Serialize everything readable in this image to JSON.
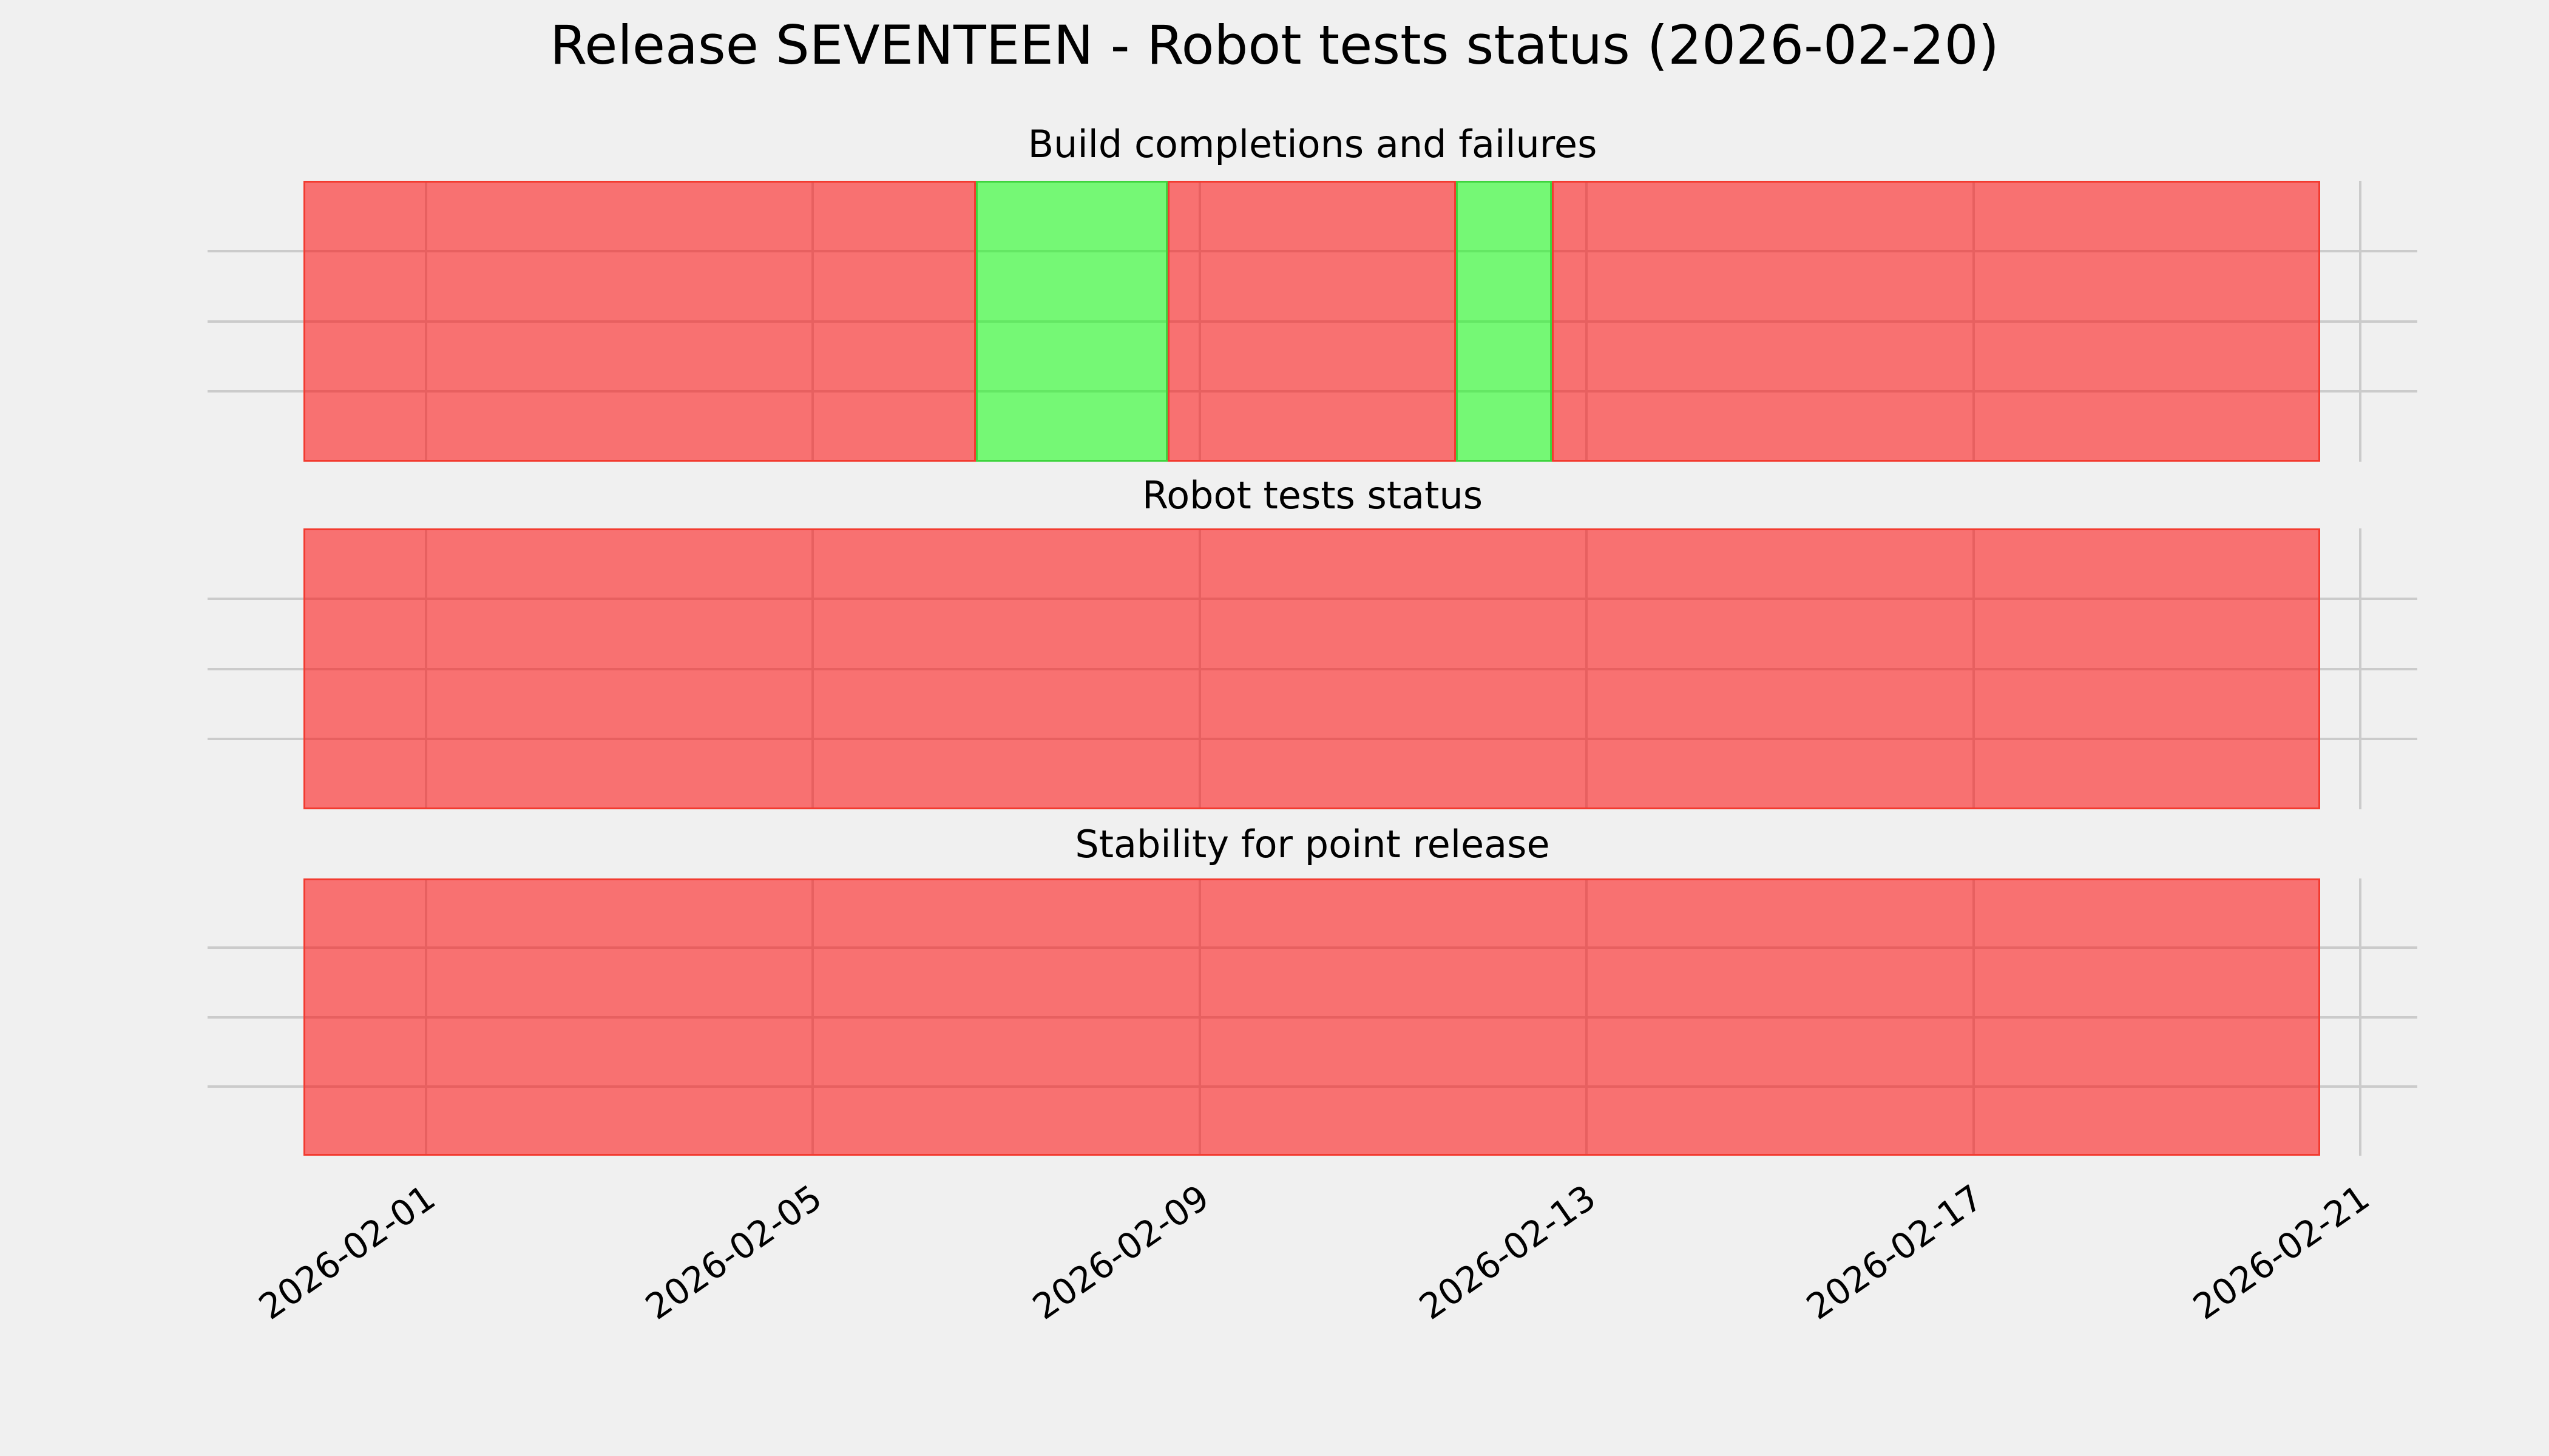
{
  "figure": {
    "title": "Release SEVENTEEN - Robot tests status (2026-02-20)",
    "background_color": "#f0f0f0",
    "gridline_color": "#cbcbcb",
    "text_color": "#000000"
  },
  "chart_data": {
    "type": "bar",
    "subtype": "daily-status-timeline",
    "title": "Release SEVENTEEN - Robot tests status (2026-02-20)",
    "grid": true,
    "legend_position": "none",
    "x": [
      "2026-01-31",
      "2026-02-01",
      "2026-02-02",
      "2026-02-03",
      "2026-02-04",
      "2026-02-05",
      "2026-02-06",
      "2026-02-07",
      "2026-02-08",
      "2026-02-09",
      "2026-02-10",
      "2026-02-11",
      "2026-02-12",
      "2026-02-13",
      "2026-02-14",
      "2026-02-15",
      "2026-02-16",
      "2026-02-17",
      "2026-02-18",
      "2026-02-19",
      "2026-02-20"
    ],
    "xtick_labels": [
      "2026-02-01",
      "2026-02-05",
      "2026-02-09",
      "2026-02-13",
      "2026-02-17",
      "2026-02-21"
    ],
    "panels": [
      {
        "title": "Build completions and failures",
        "statuses": [
          "fail",
          "fail",
          "fail",
          "fail",
          "fail",
          "fail",
          "fail",
          "pass",
          "pass",
          "fail",
          "fail",
          "fail",
          "pass",
          "fail",
          "fail",
          "fail",
          "fail",
          "fail",
          "fail",
          "fail",
          "fail"
        ]
      },
      {
        "title": "Robot tests status",
        "statuses": [
          "fail",
          "fail",
          "fail",
          "fail",
          "fail",
          "fail",
          "fail",
          "fail",
          "fail",
          "fail",
          "fail",
          "fail",
          "fail",
          "fail",
          "fail",
          "fail",
          "fail",
          "fail",
          "fail",
          "fail",
          "fail"
        ]
      },
      {
        "title": "Stability for point release",
        "statuses": [
          "fail",
          "fail",
          "fail",
          "fail",
          "fail",
          "fail",
          "fail",
          "fail",
          "fail",
          "fail",
          "fail",
          "fail",
          "fail",
          "fail",
          "fail",
          "fail",
          "fail",
          "fail",
          "fail",
          "fail",
          "fail"
        ]
      }
    ],
    "status_colors": {
      "fail_fill": "rgba(255,10,10,0.55)",
      "fail_edge": "#f23b30",
      "pass_fill": "rgba(16,255,16,0.55)",
      "pass_edge": "#3ed43e"
    }
  }
}
